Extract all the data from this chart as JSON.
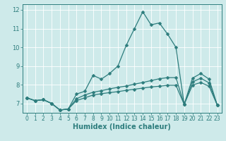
{
  "title": "",
  "xlabel": "Humidex (Indice chaleur)",
  "bg_color": "#ceeaea",
  "grid_color": "#ffffff",
  "line_color": "#2d7d7d",
  "xlim": [
    -0.5,
    23.5
  ],
  "ylim": [
    6.5,
    12.3
  ],
  "yticks": [
    7,
    8,
    9,
    10,
    11,
    12
  ],
  "xticks": [
    0,
    1,
    2,
    3,
    4,
    5,
    6,
    7,
    8,
    9,
    10,
    11,
    12,
    13,
    14,
    15,
    16,
    17,
    18,
    19,
    20,
    21,
    22,
    23
  ],
  "series1_x": [
    0,
    1,
    2,
    3,
    4,
    5,
    6,
    7,
    8,
    9,
    10,
    11,
    12,
    13,
    14,
    15,
    16,
    17,
    18,
    19,
    20,
    21,
    22,
    23
  ],
  "series1_y": [
    7.3,
    7.15,
    7.2,
    7.0,
    6.65,
    6.7,
    7.5,
    7.65,
    8.5,
    8.3,
    8.6,
    9.0,
    10.1,
    11.0,
    11.9,
    11.2,
    11.3,
    10.7,
    10.0,
    6.95,
    8.35,
    8.6,
    8.3,
    6.9
  ],
  "series2_x": [
    0,
    1,
    2,
    3,
    4,
    5,
    6,
    7,
    8,
    9,
    10,
    11,
    12,
    13,
    14,
    15,
    16,
    17,
    18,
    19,
    20,
    21,
    22,
    23
  ],
  "series2_y": [
    7.3,
    7.15,
    7.2,
    7.0,
    6.65,
    6.7,
    7.25,
    7.45,
    7.6,
    7.68,
    7.78,
    7.86,
    7.93,
    8.03,
    8.12,
    8.22,
    8.32,
    8.38,
    8.38,
    6.95,
    8.15,
    8.35,
    8.1,
    6.9
  ],
  "series3_x": [
    0,
    1,
    2,
    3,
    4,
    5,
    6,
    7,
    8,
    9,
    10,
    11,
    12,
    13,
    14,
    15,
    16,
    17,
    18,
    19,
    20,
    21,
    22,
    23
  ],
  "series3_y": [
    7.3,
    7.15,
    7.2,
    7.0,
    6.65,
    6.7,
    7.15,
    7.3,
    7.45,
    7.52,
    7.58,
    7.63,
    7.7,
    7.76,
    7.82,
    7.88,
    7.92,
    7.97,
    7.97,
    6.95,
    7.98,
    8.12,
    7.92,
    6.9
  ],
  "marker_size": 2.5,
  "line_width": 0.9,
  "tick_fontsize": 5.5,
  "xlabel_fontsize": 7
}
